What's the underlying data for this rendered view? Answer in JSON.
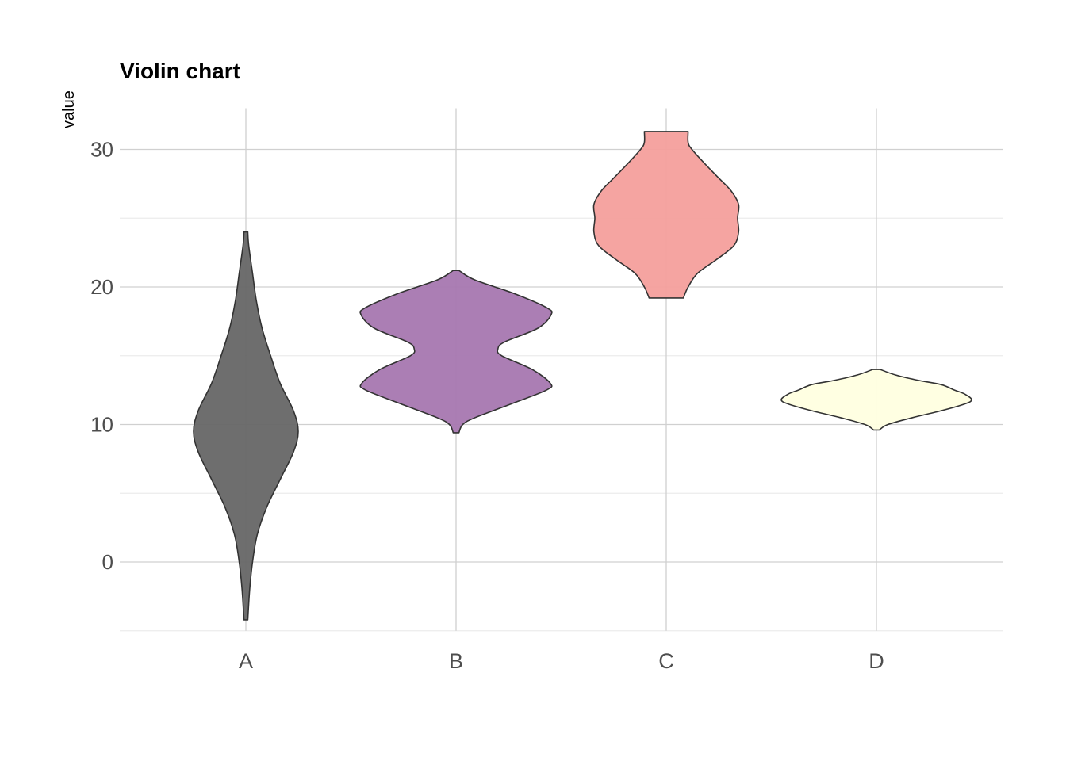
{
  "chart_data": {
    "type": "violin",
    "title": "Violin chart",
    "xlabel": "",
    "ylabel": "value",
    "categories": [
      "A",
      "B",
      "C",
      "D"
    ],
    "ylim": [
      -5,
      33
    ],
    "yticks": [
      0,
      10,
      20,
      30
    ],
    "grid": true,
    "legend": "none",
    "series": [
      {
        "category": "A",
        "color": "#666666",
        "range": [
          -4.2,
          24.0
        ],
        "density": [
          [
            -4.2,
            0.02
          ],
          [
            -2,
            0.04
          ],
          [
            0,
            0.07
          ],
          [
            2,
            0.12
          ],
          [
            4,
            0.22
          ],
          [
            6,
            0.36
          ],
          [
            8,
            0.5
          ],
          [
            9.5,
            0.55
          ],
          [
            11,
            0.5
          ],
          [
            13,
            0.36
          ],
          [
            15,
            0.26
          ],
          [
            17,
            0.17
          ],
          [
            19,
            0.11
          ],
          [
            21,
            0.07
          ],
          [
            23,
            0.03
          ],
          [
            24.0,
            0.02
          ]
        ]
      },
      {
        "category": "B",
        "color": "#A677B0",
        "range": [
          9.4,
          21.2
        ],
        "density": [
          [
            9.4,
            0.03
          ],
          [
            10,
            0.07
          ],
          [
            10.5,
            0.2
          ],
          [
            11.5,
            0.58
          ],
          [
            12.5,
            0.95
          ],
          [
            13,
            0.99
          ],
          [
            14,
            0.8
          ],
          [
            15,
            0.48
          ],
          [
            15.5,
            0.44
          ],
          [
            16,
            0.51
          ],
          [
            17,
            0.86
          ],
          [
            18,
            1.0
          ],
          [
            18.5,
            0.95
          ],
          [
            19.5,
            0.62
          ],
          [
            20.5,
            0.2
          ],
          [
            21.2,
            0.03
          ]
        ]
      },
      {
        "category": "C",
        "color": "#F49F9C",
        "range": [
          19.2,
          31.3
        ],
        "density": [
          [
            19.2,
            0.18
          ],
          [
            20,
            0.23
          ],
          [
            21,
            0.33
          ],
          [
            22,
            0.53
          ],
          [
            23,
            0.71
          ],
          [
            24,
            0.76
          ],
          [
            25,
            0.75
          ],
          [
            26,
            0.76
          ],
          [
            27,
            0.68
          ],
          [
            28,
            0.54
          ],
          [
            29,
            0.4
          ],
          [
            30,
            0.27
          ],
          [
            30.5,
            0.23
          ],
          [
            31.3,
            0.23
          ]
        ]
      },
      {
        "category": "D",
        "color": "#FFFFE0",
        "range": [
          9.6,
          14.0
        ],
        "density": [
          [
            9.6,
            0.03
          ],
          [
            10,
            0.12
          ],
          [
            10.5,
            0.38
          ],
          [
            11,
            0.68
          ],
          [
            11.5,
            0.93
          ],
          [
            11.8,
            1.0
          ],
          [
            12.2,
            0.93
          ],
          [
            12.5,
            0.82
          ],
          [
            12.9,
            0.68
          ],
          [
            13.2,
            0.45
          ],
          [
            13.6,
            0.2
          ],
          [
            14.0,
            0.04
          ]
        ]
      }
    ]
  }
}
